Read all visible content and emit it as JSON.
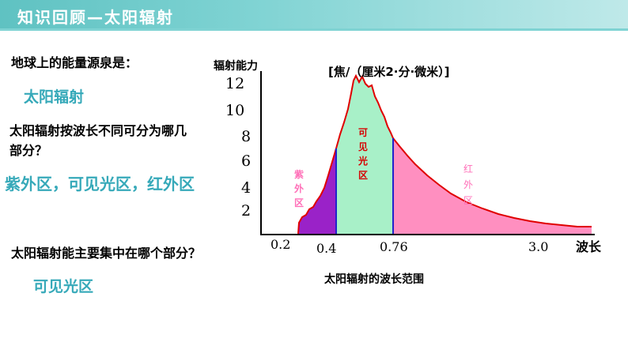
{
  "header": {
    "title": "知识回顾—太阳辐射"
  },
  "questions": {
    "q1": "地球上的能量源泉是：",
    "a1": "太阳辐射",
    "q2": "太阳辐射按波长不同可分为哪几部分？",
    "a2": "紫外区，可见光区，红外区",
    "q3": "太阳辐射能主要集中在哪个部分？",
    "a3": "可见光区"
  },
  "chart_data": {
    "type": "area",
    "title": "太阳辐射的波长范围",
    "ylabel": "辐射能力",
    "yunit": "[焦/（厘米2·分·微米）]",
    "xlabel": "波长",
    "y_ticks": [
      "2",
      "4",
      "6",
      "8",
      "10",
      "12"
    ],
    "x_ticks": [
      "0.2",
      "0.4",
      "0.76",
      "3.0"
    ],
    "regions": [
      {
        "name": "紫外区",
        "range": [
          0.2,
          0.4
        ],
        "color": "#9a22c8"
      },
      {
        "name": "可见光区",
        "range": [
          0.4,
          0.76
        ],
        "color": "#a8f0c8"
      },
      {
        "name": "红外区",
        "range": [
          0.76,
          3.5
        ],
        "color": "#ff8fc0"
      }
    ],
    "region_labels": {
      "uv": [
        "紫",
        "外",
        "区"
      ],
      "visible": [
        "可",
        "见",
        "光",
        "区"
      ],
      "ir": [
        "红",
        "外",
        "区"
      ]
    },
    "colors": {
      "curve": "#e00000",
      "axis": "#000000",
      "boundary": "#2222cc"
    }
  }
}
